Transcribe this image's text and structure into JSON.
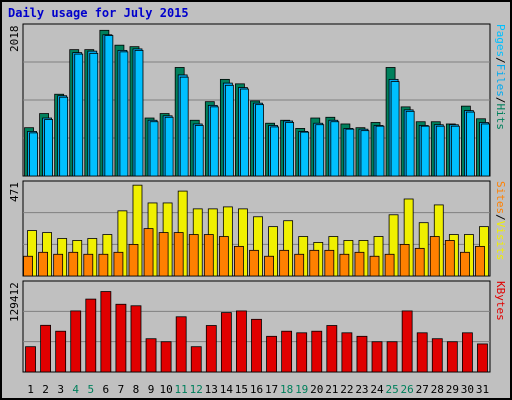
{
  "title": "Daily usage for July 2015",
  "colors": {
    "hits": "#00805c",
    "files": "#00aaf0",
    "pages": "#00c0ff",
    "visits": "#ff8000",
    "sites": "#f0f000",
    "kbytes": "#e00000",
    "weekend": "#00805c",
    "weekday": "#000000",
    "background": "#c0c0c0",
    "title": "#0000cc"
  },
  "right_labels": {
    "panel1": [
      "Pages",
      "/",
      "Files",
      "/",
      "Hits"
    ],
    "panel2": [
      "Sites",
      "/",
      "Visits"
    ],
    "panel3": [
      "KBytes"
    ]
  },
  "chart_data": [
    {
      "type": "bar",
      "title": "Daily usage for July 2015",
      "panel": "hits-files-pages",
      "ymax_label": "2018",
      "ylim": [
        0,
        2018
      ],
      "categories": [
        "1",
        "2",
        "3",
        "4",
        "5",
        "6",
        "7",
        "8",
        "9",
        "10",
        "11",
        "12",
        "13",
        "14",
        "15",
        "16",
        "17",
        "18",
        "19",
        "20",
        "21",
        "22",
        "23",
        "24",
        "25",
        "26",
        "27",
        "28",
        "29",
        "30",
        "31"
      ],
      "weekend_days": [
        "4",
        "5",
        "11",
        "12",
        "18",
        "19",
        "25",
        "26"
      ],
      "series": [
        {
          "name": "Hits",
          "values": [
            650,
            840,
            1100,
            1700,
            1700,
            1960,
            1760,
            1740,
            780,
            840,
            1460,
            750,
            1000,
            1300,
            1240,
            1010,
            710,
            750,
            640,
            780,
            790,
            700,
            650,
            720,
            1460,
            930,
            730,
            730,
            700,
            940,
            770
          ]
        },
        {
          "name": "Files",
          "values": [
            600,
            780,
            1080,
            1660,
            1680,
            1900,
            1690,
            1710,
            750,
            810,
            1360,
            700,
            950,
            1250,
            1190,
            980,
            680,
            740,
            600,
            710,
            750,
            640,
            630,
            680,
            1300,
            890,
            680,
            690,
            690,
            880,
            720
          ]
        },
        {
          "name": "Pages",
          "values": [
            580,
            760,
            1060,
            1640,
            1650,
            1890,
            1670,
            1690,
            730,
            790,
            1330,
            680,
            930,
            1220,
            1170,
            960,
            660,
            720,
            590,
            690,
            730,
            630,
            610,
            670,
            1270,
            870,
            670,
            670,
            670,
            860,
            700
          ]
        }
      ]
    },
    {
      "type": "bar",
      "panel": "visits-sites",
      "ymax_label": "471",
      "ylim": [
        0,
        471
      ],
      "categories": [
        "1",
        "2",
        "3",
        "4",
        "5",
        "6",
        "7",
        "8",
        "9",
        "10",
        "11",
        "12",
        "13",
        "14",
        "15",
        "16",
        "17",
        "18",
        "19",
        "20",
        "21",
        "22",
        "23",
        "24",
        "25",
        "26",
        "27",
        "28",
        "29",
        "30",
        "31"
      ],
      "series": [
        {
          "name": "Sites",
          "values": [
            230,
            220,
            190,
            180,
            190,
            210,
            330,
            460,
            370,
            370,
            430,
            340,
            340,
            350,
            340,
            300,
            250,
            280,
            200,
            170,
            200,
            180,
            180,
            200,
            310,
            390,
            270,
            360,
            210,
            210,
            250
          ]
        },
        {
          "name": "Visits",
          "values": [
            100,
            120,
            110,
            120,
            110,
            110,
            120,
            160,
            240,
            220,
            220,
            210,
            210,
            200,
            150,
            130,
            100,
            130,
            110,
            130,
            130,
            110,
            120,
            100,
            110,
            160,
            140,
            200,
            180,
            120,
            150
          ]
        }
      ]
    },
    {
      "type": "bar",
      "panel": "kbytes",
      "ymax_label": "129412",
      "ylim": [
        0,
        129412
      ],
      "categories": [
        "1",
        "2",
        "3",
        "4",
        "5",
        "6",
        "7",
        "8",
        "9",
        "10",
        "11",
        "12",
        "13",
        "14",
        "15",
        "16",
        "17",
        "18",
        "19",
        "20",
        "21",
        "22",
        "23",
        "24",
        "25",
        "26",
        "27",
        "28",
        "29",
        "30",
        "31"
      ],
      "series": [
        {
          "name": "KBytes",
          "values": [
            36800,
            67900,
            59300,
            88800,
            106000,
            117000,
            98500,
            96300,
            48400,
            44000,
            80300,
            36800,
            67600,
            86400,
            88800,
            76600,
            51900,
            59300,
            57000,
            59300,
            67600,
            57000,
            51900,
            44000,
            44000,
            88800,
            57000,
            48400,
            44000,
            57000,
            40800
          ]
        }
      ]
    }
  ]
}
